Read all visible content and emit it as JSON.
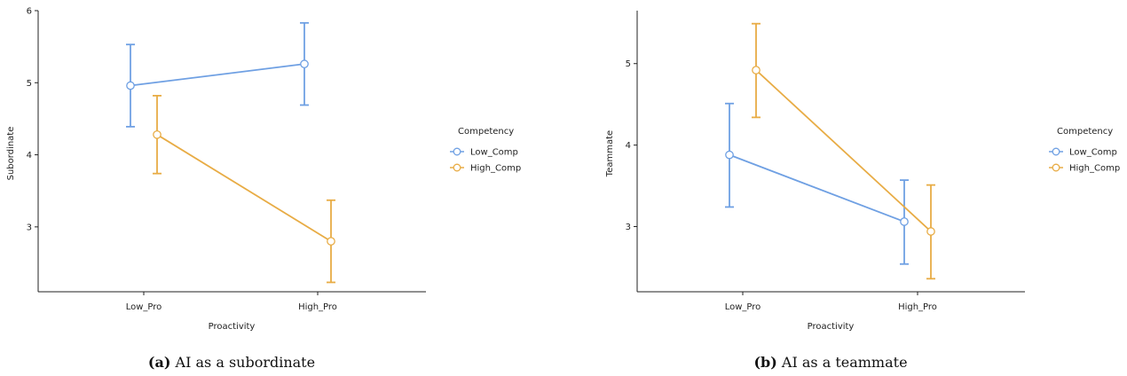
{
  "colors": {
    "Low_Comp": "#6fa0e3",
    "High_Comp": "#e8ac45",
    "axis": "#222222"
  },
  "chart_data": [
    {
      "type": "line",
      "xlabel": "Proactivity",
      "ylabel": "Subordinate",
      "categories": [
        "Low_Pro",
        "High_Pro"
      ],
      "ylim": [
        2.1,
        6.0
      ],
      "yticks": [
        3,
        4,
        5,
        6
      ],
      "legend": {
        "title": "Competency",
        "position": "right"
      },
      "series": [
        {
          "name": "Low_Comp",
          "values": [
            4.96,
            5.26
          ],
          "lower": [
            4.39,
            4.69
          ],
          "upper": [
            5.53,
            5.83
          ]
        },
        {
          "name": "High_Comp",
          "values": [
            4.28,
            2.8
          ],
          "lower": [
            3.74,
            2.23
          ],
          "upper": [
            4.82,
            3.37
          ]
        }
      ],
      "caption_tag": "(a)",
      "caption_text": "AI as a subordinate"
    },
    {
      "type": "line",
      "xlabel": "Proactivity",
      "ylabel": "Teammate",
      "categories": [
        "Low_Pro",
        "High_Pro"
      ],
      "ylim": [
        2.2,
        5.65
      ],
      "yticks": [
        3,
        4,
        5
      ],
      "legend": {
        "title": "Competency",
        "position": "right"
      },
      "series": [
        {
          "name": "Low_Comp",
          "values": [
            3.88,
            3.06
          ],
          "lower": [
            3.24,
            2.54
          ],
          "upper": [
            4.51,
            3.57
          ]
        },
        {
          "name": "High_Comp",
          "values": [
            4.92,
            2.94
          ],
          "lower": [
            4.34,
            2.36
          ],
          "upper": [
            5.49,
            3.51
          ]
        }
      ],
      "caption_tag": "(b)",
      "caption_text": "AI as a teammate"
    }
  ]
}
